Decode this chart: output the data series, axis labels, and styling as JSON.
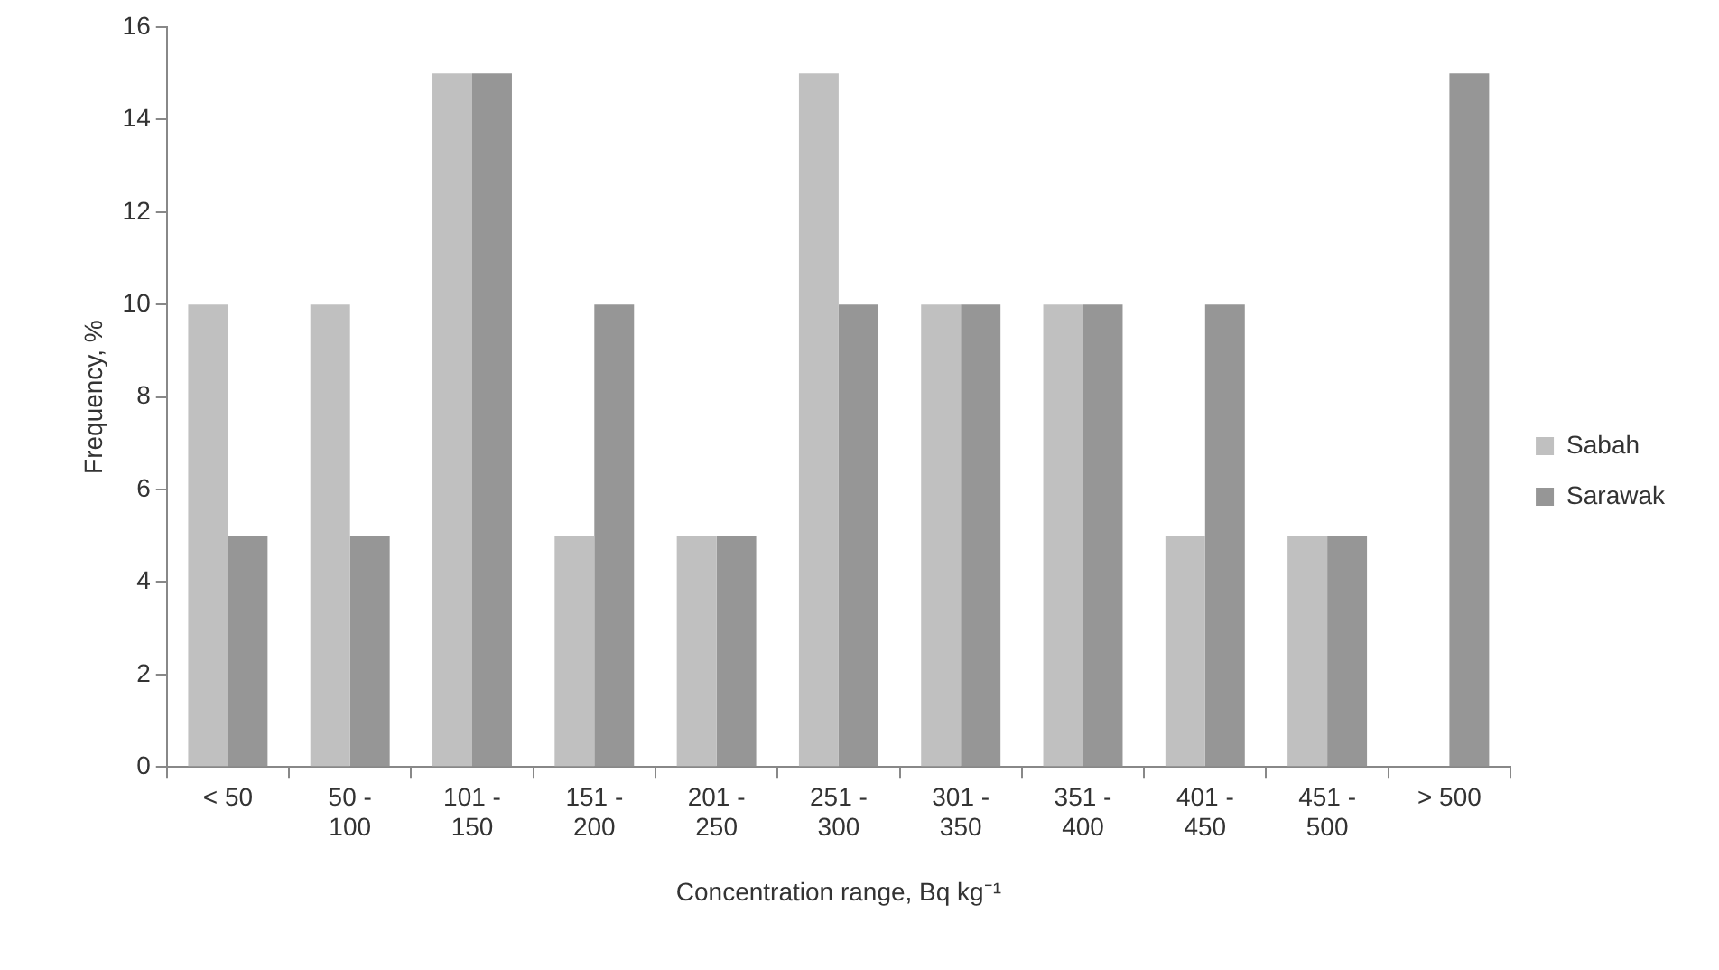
{
  "chart_data": {
    "type": "bar",
    "xlabel": "Concentration range, Bq kg⁻¹",
    "ylabel": "Frequency, %",
    "categories": [
      "< 50",
      "50 - 100",
      "101 - 150",
      "151 - 200",
      "201 - 250",
      "251 - 300",
      "301 - 350",
      "351 - 400",
      "401 - 450",
      "451 - 500",
      "> 500"
    ],
    "series": [
      {
        "name": "Sabah",
        "color": "#c0c0c0",
        "values": [
          10,
          10,
          15,
          5,
          5,
          15,
          10,
          10,
          5,
          5,
          0
        ]
      },
      {
        "name": "Sarawak",
        "color": "#969696",
        "values": [
          5,
          5,
          15,
          10,
          5,
          10,
          10,
          10,
          10,
          5,
          15
        ]
      }
    ],
    "ylim": [
      0,
      16
    ],
    "yticks": [
      0,
      2,
      4,
      6,
      8,
      10,
      12,
      14,
      16
    ],
    "grid": false,
    "legend": "right"
  }
}
